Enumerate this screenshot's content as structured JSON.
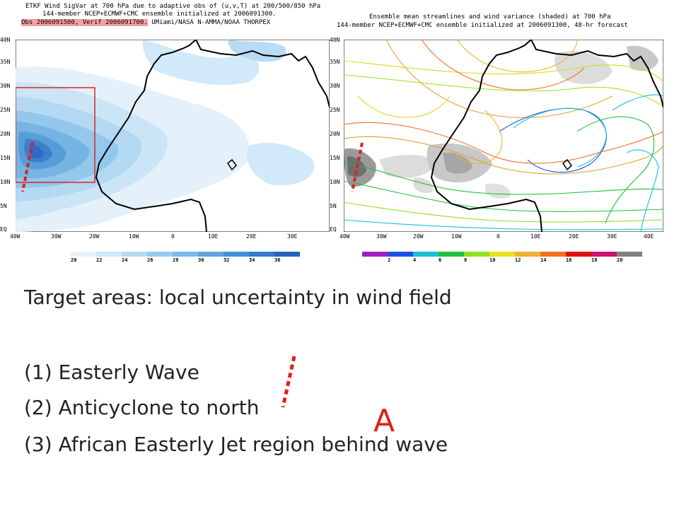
{
  "left_panel": {
    "header_line1": "ETKF Wind SigVar at 700 hPa due to adaptive obs of (u,v,T) at 200/500/850 hPa",
    "header_line2": "144-member NCEP+ECMWF+CMC ensemble initialized at 2006091300.",
    "header_line3_highlight": "Obs 2006091500, Verif 2006091700.",
    "header_line3_rest": "UMiami/NASA N-AMMA/NOAA THORPEX",
    "lat_labels": [
      "40N",
      "35N",
      "30N",
      "25N",
      "20N",
      "15N",
      "10N",
      "5N",
      "EQ"
    ],
    "lon_labels": [
      "40W",
      "30W",
      "20W",
      "10W",
      "0",
      "10E",
      "20E",
      "30E"
    ],
    "colorbar_labels": [
      "20",
      "22",
      "24",
      "26",
      "28",
      "30",
      "32",
      "34",
      "36"
    ],
    "colorbar_colors": [
      "#e8f4fc",
      "#cfe8f8",
      "#b4daf4",
      "#97caef",
      "#7ab8e8",
      "#5ea5e0",
      "#4791d6",
      "#3479cb",
      "#2563c0"
    ]
  },
  "right_panel": {
    "header_line1": "Ensemble mean streamlines and wind variance (shaded) at 700 hPa",
    "header_line2": "144-member NCEP+ECMWF+CMC ensemble initialized at 2006091300, 48-hr forecast",
    "lat_labels": [
      "40N",
      "35N",
      "30N",
      "25N",
      "20N",
      "15N",
      "10N",
      "5N",
      "EQ"
    ],
    "lon_labels": [
      "40W",
      "30W",
      "20W",
      "10W",
      "0",
      "10E",
      "20E",
      "30E",
      "40E"
    ],
    "colorbar_labels": [
      "2",
      "4",
      "6",
      "8",
      "10",
      "12",
      "14",
      "16",
      "18",
      "20"
    ],
    "colorbar_colors": [
      "#a020c0",
      "#2050e0",
      "#18c0d8",
      "#20c040",
      "#90e020",
      "#e8e020",
      "#f0b030",
      "#f07020",
      "#e01010",
      "#d01070",
      "#808080"
    ]
  },
  "text": {
    "heading": "Target areas: local uncertainty in wind field",
    "item1": "(1) Easterly Wave",
    "item2": "(2) Anticyclone to north",
    "item3": "(3) African Easterly Jet region behind wave",
    "marker": "A"
  },
  "colors": {
    "target_box": "#e02020",
    "dashed_line": "#e02020"
  }
}
